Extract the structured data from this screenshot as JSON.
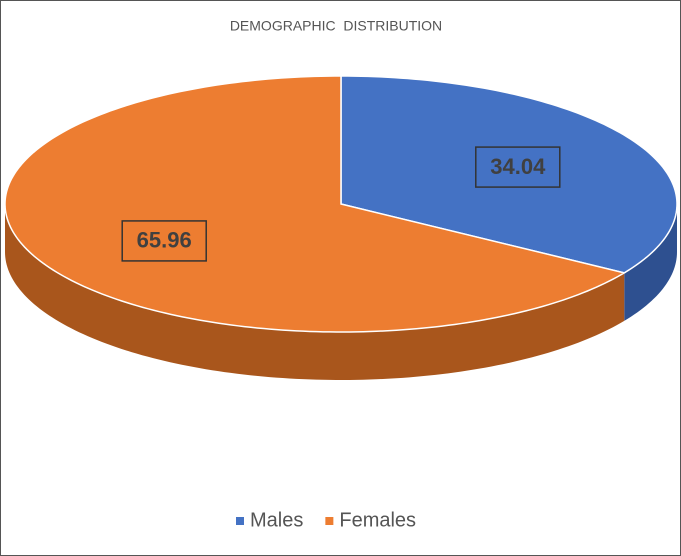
{
  "chart_data": {
    "type": "pie",
    "title": "DEMOGRAPHIC  DISTRIBUTION",
    "categories": [
      "Males",
      "Females"
    ],
    "values": [
      34.04,
      65.96
    ],
    "colors": [
      "#4472c4",
      "#ed7d31"
    ],
    "side_colors": [
      "#2e5090",
      "#a9561c"
    ],
    "legend": "bottom"
  }
}
